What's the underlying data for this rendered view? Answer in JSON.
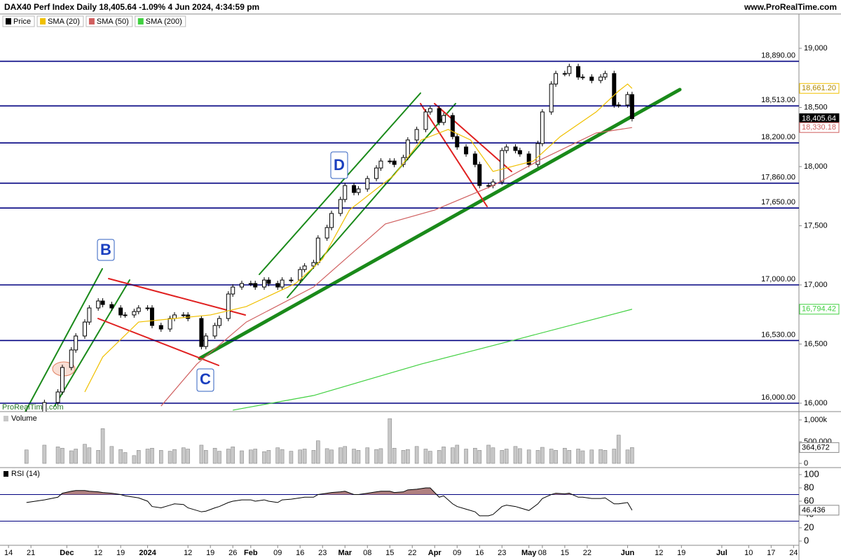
{
  "header": {
    "source": "www.ProRealTime.com",
    "watermark": "ProRealTime.com"
  },
  "chart_data": [
    {
      "type": "candlestick",
      "title": "DAX40 Perf Index Daily 18,405.64 -1.09% 4 Jun 2024, 4:34:59 pm",
      "xlim": [
        -1.9,
        176.2
      ],
      "ylim": [
        15929,
        19290
      ],
      "xticks": [
        {
          "value": 0,
          "label": "14"
        },
        {
          "value": 5,
          "label": "21"
        },
        {
          "value": 13,
          "label": "Dec"
        },
        {
          "value": 20,
          "label": "12"
        },
        {
          "value": 25,
          "label": "19"
        },
        {
          "value": 31,
          "label": "2024"
        },
        {
          "value": 40,
          "label": "12"
        },
        {
          "value": 45,
          "label": "19"
        },
        {
          "value": 50,
          "label": "26"
        },
        {
          "value": 54,
          "label": "Feb"
        },
        {
          "value": 60,
          "label": "09"
        },
        {
          "value": 65,
          "label": "16"
        },
        {
          "value": 70,
          "label": "23"
        },
        {
          "value": 75,
          "label": "Mar"
        },
        {
          "value": 80,
          "label": "08"
        },
        {
          "value": 85,
          "label": "15"
        },
        {
          "value": 90,
          "label": "22"
        },
        {
          "value": 95,
          "label": "Apr"
        },
        {
          "value": 100,
          "label": "09"
        },
        {
          "value": 105,
          "label": "16"
        },
        {
          "value": 110,
          "label": "23"
        },
        {
          "value": 116,
          "label": "May"
        },
        {
          "value": 119,
          "label": "08"
        },
        {
          "value": 124,
          "label": "15"
        },
        {
          "value": 129,
          "label": "22"
        },
        {
          "value": 138,
          "label": "Jun"
        },
        {
          "value": 145,
          "label": "12"
        },
        {
          "value": 150,
          "label": "19"
        },
        {
          "value": 159,
          "label": "Jul"
        },
        {
          "value": 165,
          "label": "10"
        },
        {
          "value": 170,
          "label": "17"
        },
        {
          "value": 175,
          "label": "24"
        }
      ],
      "yticks": [
        {
          "value": 19000,
          "label": "19,000"
        },
        {
          "value": 18500,
          "label": "18,500"
        },
        {
          "value": 18000,
          "label": "18,000"
        },
        {
          "value": 17500,
          "label": "17,500"
        },
        {
          "value": 17000,
          "label": "17,000"
        },
        {
          "value": 16500,
          "label": "16,500"
        },
        {
          "value": 16000,
          "label": "16,000"
        }
      ],
      "levels": [
        {
          "value": 18890,
          "label": "18,890.00"
        },
        {
          "value": 18513,
          "label": "18,513.00"
        },
        {
          "value": 18200,
          "label": "18,200.00"
        },
        {
          "value": 17860,
          "label": "17,860.00"
        },
        {
          "value": 17650,
          "label": "17,650.00"
        },
        {
          "value": 17000,
          "label": "17,000.00"
        },
        {
          "value": 16530,
          "label": "16,530.00"
        },
        {
          "value": 16000,
          "label": "16,000.00"
        }
      ],
      "annotations": [
        "B",
        "C",
        "D"
      ],
      "x": [
        4,
        8,
        11,
        12,
        14,
        15,
        17,
        18,
        20,
        21,
        23,
        25,
        26,
        28,
        29,
        31,
        32,
        34,
        36,
        37,
        39,
        40,
        43,
        44,
        46,
        47,
        49,
        50,
        52,
        54,
        55,
        57,
        58,
        60,
        61,
        63,
        65,
        66,
        68,
        69,
        71,
        72,
        74,
        75,
        77,
        78,
        80,
        82,
        83,
        85,
        86,
        88,
        89,
        91,
        93,
        94,
        96,
        97,
        99,
        100,
        102,
        104,
        105,
        107,
        108,
        110,
        111,
        113,
        114,
        116,
        118,
        119,
        121,
        122,
        124,
        125,
        127,
        128,
        130,
        132,
        133,
        135,
        136,
        138,
        139
      ],
      "series": [
        {
          "name": "Price",
          "color": "#000000",
          "last_label": "18,405.64",
          "values": [
            15917,
            16006,
            16095,
            16302,
            16450,
            16568,
            16686,
            16805,
            16864,
            16834,
            16805,
            16746,
            16746,
            16775,
            16805,
            16805,
            16657,
            16627,
            16716,
            16746,
            16746,
            16716,
            16479,
            16568,
            16657,
            16716,
            16923,
            16982,
            17012,
            17012,
            16982,
            17041,
            17012,
            16982,
            17041,
            17041,
            17130,
            17160,
            17189,
            17396,
            17485,
            17604,
            17722,
            17840,
            17781,
            17811,
            17899,
            17988,
            18047,
            18047,
            18018,
            18077,
            18225,
            18314,
            18462,
            18491,
            18373,
            18432,
            18254,
            18166,
            18107,
            18018,
            17840,
            17840,
            17870,
            18136,
            18166,
            18136,
            18107,
            18018,
            18195,
            18462,
            18698,
            18787,
            18787,
            18846,
            18757,
            18757,
            18728,
            18757,
            18787,
            18521,
            18521,
            18609,
            18405.64
          ]
        },
        {
          "name": "SMA (20)",
          "color": "#f0c000",
          "last_label": "18,661.20",
          "x": [
            17,
            21,
            29,
            37,
            45,
            53,
            64,
            70,
            76,
            86,
            92,
            98,
            103,
            108,
            114,
            117,
            123,
            131,
            136,
            138,
            139
          ],
          "values": [
            16095,
            16391,
            16686,
            16716,
            16746,
            16817,
            17012,
            17219,
            17633,
            17929,
            18225,
            18314,
            18225,
            17959,
            18018,
            18047,
            18254,
            18462,
            18639,
            18698,
            18661.2
          ]
        },
        {
          "name": "SMA (50)",
          "color": "#d06060",
          "last_label": "18,330.18",
          "x": [
            34,
            42,
            53,
            68,
            84,
            95,
            108,
            118,
            131,
            139
          ],
          "values": [
            15976,
            16331,
            16686,
            16982,
            17515,
            17633,
            17840,
            18047,
            18284,
            18330.18
          ]
        },
        {
          "name": "SMA (200)",
          "color": "#40d040",
          "last_label": "16,794.42",
          "x": [
            50,
            68,
            92,
            115,
            139
          ],
          "values": [
            15941,
            16065,
            16331,
            16556,
            16794.42
          ]
        }
      ]
    },
    {
      "type": "bar",
      "title": "Volume",
      "ylim": [
        0,
        1160000
      ],
      "yticks": [
        {
          "value": 1000000,
          "label": "1,000k"
        },
        {
          "value": 500000,
          "label": "500,000"
        },
        0
      ],
      "color": "#c8c8c8",
      "last_label": "364,672",
      "values": [
        310000,
        420000,
        380000,
        350000,
        290000,
        330000,
        440000,
        360000,
        300000,
        800000,
        390000,
        320000,
        250000,
        180000,
        300000,
        330000,
        350000,
        300000,
        280000,
        320000,
        360000,
        330000,
        420000,
        300000,
        350000,
        280000,
        330000,
        380000,
        290000,
        310000,
        330000,
        270000,
        300000,
        360000,
        320000,
        280000,
        310000,
        330000,
        300000,
        520000,
        340000,
        310000,
        360000,
        390000,
        330000,
        300000,
        360000,
        320000,
        340000,
        1030000,
        350000,
        300000,
        320000,
        390000,
        330000,
        280000,
        300000,
        380000,
        360000,
        420000,
        330000,
        350000,
        300000,
        420000,
        360000,
        300000,
        330000,
        390000,
        340000,
        310000,
        300000,
        370000,
        330000,
        300000,
        350000,
        300000,
        330000,
        290000,
        310000,
        320000,
        300000,
        330000,
        650000,
        310000,
        364672
      ]
    },
    {
      "type": "line",
      "title": "RSI (14)",
      "ylim": [
        -5.3,
        108.4
      ],
      "yticks": [
        100,
        80,
        60,
        40,
        20,
        0
      ],
      "levels": [
        70,
        30
      ],
      "color": "#000000",
      "fill": "#b08080",
      "values": [
        58,
        62,
        66,
        72,
        75,
        76,
        76,
        75,
        74,
        73,
        72,
        70,
        68,
        66,
        65,
        60,
        52,
        50,
        54,
        56,
        55,
        50,
        44,
        45,
        50,
        52,
        58,
        60,
        62,
        62,
        60,
        62,
        60,
        58,
        62,
        63,
        65,
        66,
        66,
        70,
        72,
        73,
        74,
        75,
        70,
        70,
        72,
        74,
        75,
        75,
        73,
        74,
        77,
        78,
        80,
        80,
        66,
        68,
        56,
        52,
        48,
        44,
        38,
        38,
        40,
        52,
        54,
        52,
        50,
        46,
        56,
        64,
        70,
        72,
        71,
        72,
        66,
        66,
        64,
        64,
        65,
        56,
        56,
        58,
        46.436
      ]
    }
  ]
}
